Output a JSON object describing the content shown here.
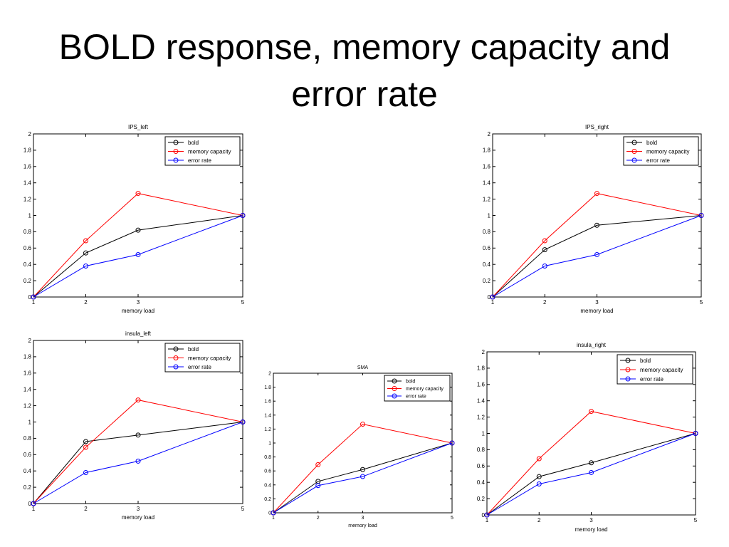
{
  "slide": {
    "title": "BOLD response, memory capacity and error rate"
  },
  "chart_data": [
    {
      "type": "line",
      "title": "IPS_left",
      "xlabel": "memory load",
      "ylabel": "",
      "x": [
        1,
        2,
        3,
        5
      ],
      "xticks": [
        1,
        2,
        3,
        5
      ],
      "yticks": [
        0,
        0.2,
        0.4,
        0.6,
        0.8,
        1,
        1.2,
        1.4,
        1.6,
        1.8,
        2
      ],
      "xlim": [
        1,
        5
      ],
      "ylim": [
        0,
        2
      ],
      "grid": false,
      "legend": "top-right",
      "series": [
        {
          "name": "bold",
          "color": "#000000",
          "values": [
            0,
            0.54,
            0.82,
            1
          ]
        },
        {
          "name": "memory capacity",
          "color": "#ff0000",
          "values": [
            0,
            0.69,
            1.27,
            1
          ]
        },
        {
          "name": "error rate",
          "color": "#0000ff",
          "values": [
            0,
            0.38,
            0.52,
            1
          ]
        }
      ]
    },
    {
      "type": "line",
      "title": "IPS_right",
      "xlabel": "memory load",
      "ylabel": "",
      "x": [
        1,
        2,
        3,
        5
      ],
      "xticks": [
        1,
        2,
        3,
        5
      ],
      "yticks": [
        0,
        0.2,
        0.4,
        0.6,
        0.8,
        1,
        1.2,
        1.4,
        1.6,
        1.8,
        2
      ],
      "xlim": [
        1,
        5
      ],
      "ylim": [
        0,
        2
      ],
      "grid": false,
      "legend": "top-right",
      "series": [
        {
          "name": "bold",
          "color": "#000000",
          "values": [
            0,
            0.58,
            0.88,
            1
          ]
        },
        {
          "name": "memory capacity",
          "color": "#ff0000",
          "values": [
            0,
            0.69,
            1.27,
            1
          ]
        },
        {
          "name": "error rate",
          "color": "#0000ff",
          "values": [
            0,
            0.38,
            0.52,
            1
          ]
        }
      ]
    },
    {
      "type": "line",
      "title": "insula_left",
      "xlabel": "memory load",
      "ylabel": "",
      "x": [
        1,
        2,
        3,
        5
      ],
      "xticks": [
        1,
        2,
        3,
        5
      ],
      "yticks": [
        0,
        0.2,
        0.4,
        0.6,
        0.8,
        1,
        1.2,
        1.4,
        1.6,
        1.8,
        2
      ],
      "xlim": [
        1,
        5
      ],
      "ylim": [
        0,
        2
      ],
      "grid": false,
      "legend": "top-right",
      "series": [
        {
          "name": "bold",
          "color": "#000000",
          "values": [
            0,
            0.76,
            0.84,
            1
          ]
        },
        {
          "name": "memory capacity",
          "color": "#ff0000",
          "values": [
            0,
            0.69,
            1.27,
            1
          ]
        },
        {
          "name": "error rate",
          "color": "#0000ff",
          "values": [
            0,
            0.38,
            0.52,
            1
          ]
        }
      ]
    },
    {
      "type": "line",
      "title": "SMA",
      "xlabel": "memory load",
      "ylabel": "",
      "x": [
        1,
        2,
        3,
        5
      ],
      "xticks": [
        1,
        2,
        3,
        5
      ],
      "yticks": [
        0,
        0.2,
        0.4,
        0.6,
        0.8,
        1,
        1.2,
        1.4,
        1.6,
        1.8,
        2
      ],
      "xlim": [
        1,
        5
      ],
      "ylim": [
        0,
        2
      ],
      "grid": false,
      "legend": "top-right",
      "series": [
        {
          "name": "bold",
          "color": "#000000",
          "values": [
            0,
            0.45,
            0.62,
            1
          ]
        },
        {
          "name": "memory capacity",
          "color": "#ff0000",
          "values": [
            0,
            0.69,
            1.27,
            1
          ]
        },
        {
          "name": "error rate",
          "color": "#0000ff",
          "values": [
            0,
            0.39,
            0.52,
            1
          ]
        }
      ]
    },
    {
      "type": "line",
      "title": "insula_right",
      "xlabel": "memory load",
      "ylabel": "",
      "x": [
        1,
        2,
        3,
        5
      ],
      "xticks": [
        1,
        2,
        3,
        5
      ],
      "yticks": [
        0,
        0.2,
        0.4,
        0.6,
        0.8,
        1,
        1.2,
        1.4,
        1.6,
        1.8,
        2
      ],
      "xlim": [
        1,
        5
      ],
      "ylim": [
        0,
        2
      ],
      "grid": false,
      "legend": "top-right",
      "series": [
        {
          "name": "bold",
          "color": "#000000",
          "values": [
            0,
            0.47,
            0.64,
            1
          ]
        },
        {
          "name": "memory capacity",
          "color": "#ff0000",
          "values": [
            0,
            0.69,
            1.27,
            1
          ]
        },
        {
          "name": "error rate",
          "color": "#0000ff",
          "values": [
            0,
            0.38,
            0.52,
            1
          ]
        }
      ]
    }
  ]
}
